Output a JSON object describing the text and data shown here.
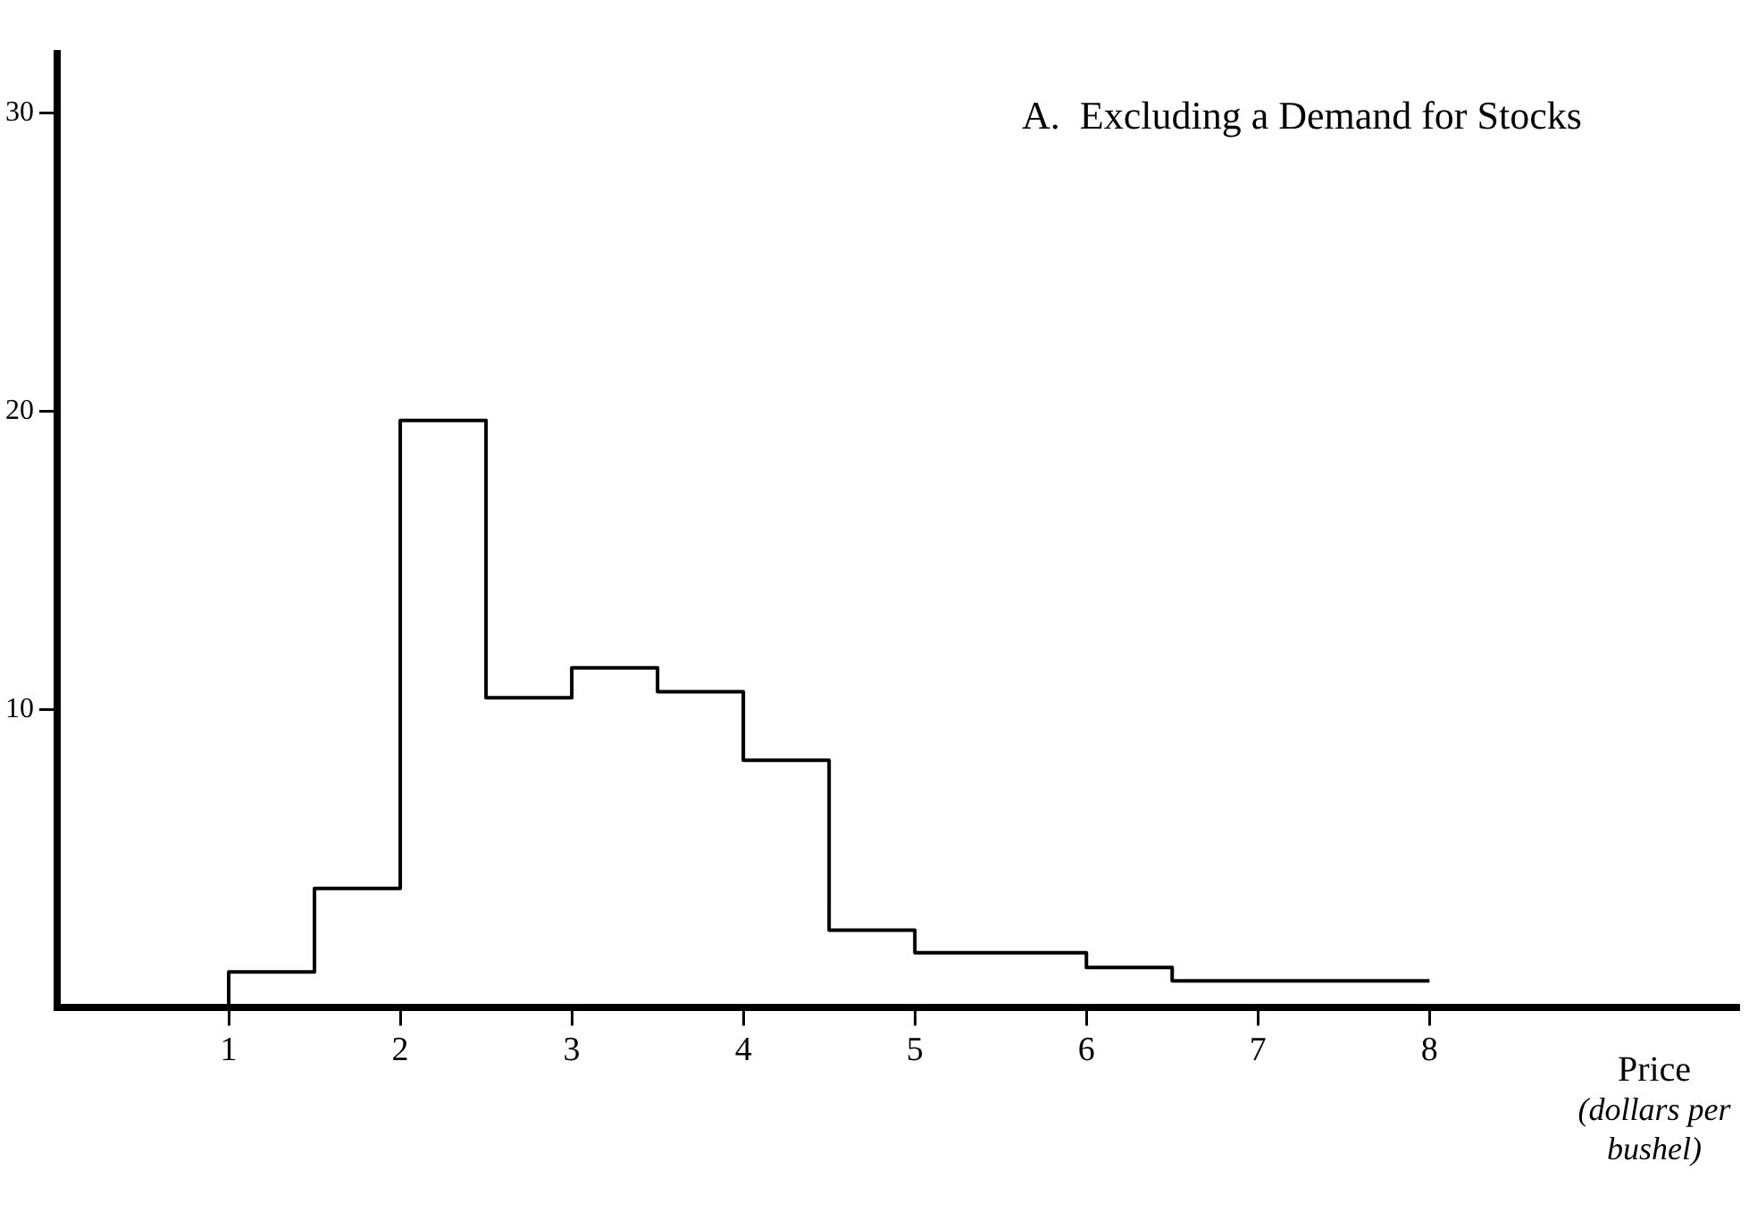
{
  "chart_data": {
    "type": "histogram",
    "title": "A.  Excluding a Demand for Stocks",
    "xlabel": "Price\n(dollars per bushel)",
    "bins": [
      1,
      1.5,
      2,
      2.5,
      3,
      3.5,
      4,
      4.5,
      5,
      6,
      6.5,
      8
    ],
    "values": [
      1.2,
      4.0,
      19.7,
      10.4,
      11.4,
      10.6,
      8.3,
      2.6,
      1.85,
      1.35,
      0.9
    ],
    "color": "#000000",
    "xlim": [
      0,
      9.8
    ],
    "xticks": [
      1,
      2,
      3,
      4,
      5,
      6,
      7,
      8
    ],
    "ylim": [
      0,
      32
    ],
    "yticks": [
      10,
      20,
      30
    ],
    "grid": false,
    "legend": false
  }
}
